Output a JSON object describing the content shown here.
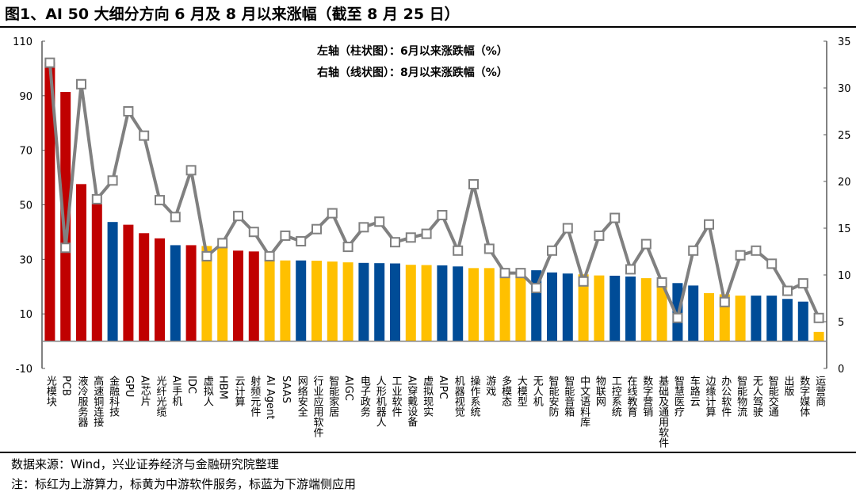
{
  "title": "图1、AI 50 大细分方向 6 月及 8 月以来涨幅（截至 8 月 25 日）",
  "footer": {
    "source": "数据来源：Wind，兴业证券经济与金融研究院整理",
    "note": "注：标红为上游算力，标黄为中游软件服务，标蓝为下游端侧应用"
  },
  "colors": {
    "upstream": "#C00000",
    "midstream": "#FFC000",
    "downstream": "#004C97",
    "line": "#808080"
  },
  "chart_data": {
    "type": "bar+line",
    "legend": [
      "左轴（柱状图）：6月以来涨跌幅（%）",
      "右轴（线状图）：8月以来涨跌幅（%）"
    ],
    "legend_placement": "top-center",
    "left_axis": {
      "ylim": [
        -10,
        110
      ],
      "ticks": [
        -10,
        10,
        30,
        50,
        70,
        90,
        110
      ]
    },
    "right_axis": {
      "ylim": [
        0,
        35
      ],
      "ticks": [
        0,
        5,
        10,
        15,
        20,
        25,
        30,
        35
      ]
    },
    "grid": false,
    "categories": [
      "光模块",
      "PCB",
      "液冷服务器",
      "高速铜连接",
      "金融科技",
      "GPU",
      "AI芯片",
      "光纤光缆",
      "AI手机",
      "IDC",
      "虚拟人",
      "HBM",
      "云计算",
      "射频元件",
      "AI Agent",
      "SAAS",
      "网络安全",
      "行业应用软件",
      "智能家居",
      "AIGC",
      "电子政务",
      "人形机器人",
      "工业软件",
      "AI穿戴设备",
      "虚拟现实",
      "AIPC",
      "机器视觉",
      "操作系统",
      "游戏",
      "多模态",
      "大模型",
      "无人机",
      "智能安防",
      "智能音箱",
      "中文语料库",
      "物联网",
      "工控系统",
      "在线教育",
      "数字营销",
      "基础及通用软件",
      "智慧医疗",
      "车路云",
      "边缘计算",
      "办公软件",
      "智能物流",
      "无人驾驶",
      "智能交通",
      "出版",
      "数字媒体",
      "运营商"
    ],
    "groups": [
      "upstream",
      "upstream",
      "upstream",
      "upstream",
      "downstream",
      "upstream",
      "upstream",
      "upstream",
      "downstream",
      "upstream",
      "midstream",
      "midstream",
      "upstream",
      "upstream",
      "midstream",
      "midstream",
      "downstream",
      "midstream",
      "midstream",
      "midstream",
      "downstream",
      "downstream",
      "downstream",
      "midstream",
      "midstream",
      "downstream",
      "downstream",
      "midstream",
      "midstream",
      "midstream",
      "midstream",
      "downstream",
      "downstream",
      "downstream",
      "midstream",
      "midstream",
      "downstream",
      "downstream",
      "midstream",
      "midstream",
      "downstream",
      "downstream",
      "midstream",
      "midstream",
      "midstream",
      "downstream",
      "downstream",
      "downstream",
      "downstream",
      "midstream"
    ],
    "series": [
      {
        "name": "6月以来涨跌幅（%）",
        "type": "bar",
        "axis": "left",
        "values": [
          102.3,
          91.4,
          57.6,
          50.2,
          43.7,
          42.7,
          39.6,
          37.7,
          35.2,
          35.2,
          34.9,
          34.7,
          33.2,
          32.9,
          29.7,
          29.6,
          29.6,
          29.5,
          29.2,
          28.9,
          28.7,
          28.6,
          28.5,
          28.0,
          27.9,
          27.8,
          27.4,
          26.8,
          26.8,
          24.5,
          24.3,
          26.0,
          25.2,
          24.8,
          24.5,
          24.1,
          24.0,
          23.7,
          23.1,
          21.5,
          21.3,
          20.4,
          17.6,
          17.2,
          16.7,
          16.7,
          16.7,
          15.5,
          14.5,
          3.4
        ]
      },
      {
        "name": "8月以来涨跌幅（%）",
        "type": "line",
        "axis": "right",
        "values": [
          32.7,
          12.9,
          30.4,
          18.1,
          20.1,
          27.5,
          24.9,
          18.0,
          16.2,
          21.2,
          12.0,
          13.4,
          16.3,
          14.6,
          12.0,
          14.2,
          13.6,
          14.9,
          16.6,
          13.0,
          15.1,
          15.7,
          13.5,
          14.0,
          14.4,
          16.4,
          12.6,
          19.7,
          12.8,
          10.2,
          10.2,
          8.6,
          12.6,
          15.0,
          9.3,
          14.2,
          16.1,
          10.6,
          13.3,
          9.2,
          5.4,
          12.6,
          15.4,
          7.1,
          12.1,
          12.6,
          11.2,
          8.3,
          9.1,
          5.4
        ]
      }
    ]
  }
}
